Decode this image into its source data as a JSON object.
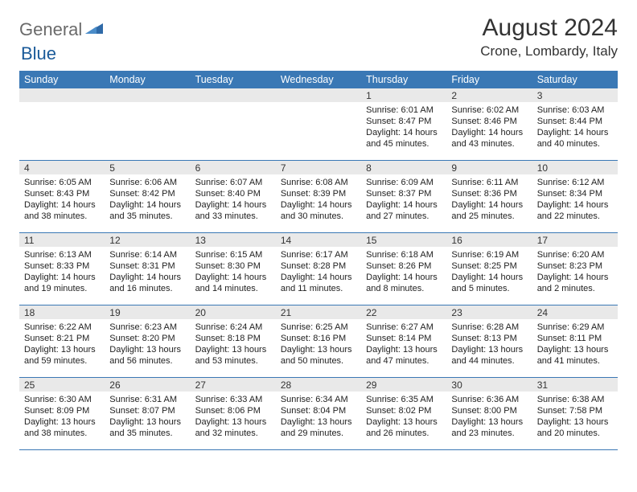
{
  "logo": {
    "general": "General",
    "blue": "Blue"
  },
  "title": "August 2024",
  "location": "Crone, Lombardy, Italy",
  "weekday_bg": "#3a78b5",
  "daynum_bg": "#e9e9e9",
  "weekdays": [
    "Sunday",
    "Monday",
    "Tuesday",
    "Wednesday",
    "Thursday",
    "Friday",
    "Saturday"
  ],
  "weeks": [
    [
      {
        "n": "",
        "sr": "",
        "ss": "",
        "dl": ""
      },
      {
        "n": "",
        "sr": "",
        "ss": "",
        "dl": ""
      },
      {
        "n": "",
        "sr": "",
        "ss": "",
        "dl": ""
      },
      {
        "n": "",
        "sr": "",
        "ss": "",
        "dl": ""
      },
      {
        "n": "1",
        "sr": "Sunrise: 6:01 AM",
        "ss": "Sunset: 8:47 PM",
        "dl": "Daylight: 14 hours and 45 minutes."
      },
      {
        "n": "2",
        "sr": "Sunrise: 6:02 AM",
        "ss": "Sunset: 8:46 PM",
        "dl": "Daylight: 14 hours and 43 minutes."
      },
      {
        "n": "3",
        "sr": "Sunrise: 6:03 AM",
        "ss": "Sunset: 8:44 PM",
        "dl": "Daylight: 14 hours and 40 minutes."
      }
    ],
    [
      {
        "n": "4",
        "sr": "Sunrise: 6:05 AM",
        "ss": "Sunset: 8:43 PM",
        "dl": "Daylight: 14 hours and 38 minutes."
      },
      {
        "n": "5",
        "sr": "Sunrise: 6:06 AM",
        "ss": "Sunset: 8:42 PM",
        "dl": "Daylight: 14 hours and 35 minutes."
      },
      {
        "n": "6",
        "sr": "Sunrise: 6:07 AM",
        "ss": "Sunset: 8:40 PM",
        "dl": "Daylight: 14 hours and 33 minutes."
      },
      {
        "n": "7",
        "sr": "Sunrise: 6:08 AM",
        "ss": "Sunset: 8:39 PM",
        "dl": "Daylight: 14 hours and 30 minutes."
      },
      {
        "n": "8",
        "sr": "Sunrise: 6:09 AM",
        "ss": "Sunset: 8:37 PM",
        "dl": "Daylight: 14 hours and 27 minutes."
      },
      {
        "n": "9",
        "sr": "Sunrise: 6:11 AM",
        "ss": "Sunset: 8:36 PM",
        "dl": "Daylight: 14 hours and 25 minutes."
      },
      {
        "n": "10",
        "sr": "Sunrise: 6:12 AM",
        "ss": "Sunset: 8:34 PM",
        "dl": "Daylight: 14 hours and 22 minutes."
      }
    ],
    [
      {
        "n": "11",
        "sr": "Sunrise: 6:13 AM",
        "ss": "Sunset: 8:33 PM",
        "dl": "Daylight: 14 hours and 19 minutes."
      },
      {
        "n": "12",
        "sr": "Sunrise: 6:14 AM",
        "ss": "Sunset: 8:31 PM",
        "dl": "Daylight: 14 hours and 16 minutes."
      },
      {
        "n": "13",
        "sr": "Sunrise: 6:15 AM",
        "ss": "Sunset: 8:30 PM",
        "dl": "Daylight: 14 hours and 14 minutes."
      },
      {
        "n": "14",
        "sr": "Sunrise: 6:17 AM",
        "ss": "Sunset: 8:28 PM",
        "dl": "Daylight: 14 hours and 11 minutes."
      },
      {
        "n": "15",
        "sr": "Sunrise: 6:18 AM",
        "ss": "Sunset: 8:26 PM",
        "dl": "Daylight: 14 hours and 8 minutes."
      },
      {
        "n": "16",
        "sr": "Sunrise: 6:19 AM",
        "ss": "Sunset: 8:25 PM",
        "dl": "Daylight: 14 hours and 5 minutes."
      },
      {
        "n": "17",
        "sr": "Sunrise: 6:20 AM",
        "ss": "Sunset: 8:23 PM",
        "dl": "Daylight: 14 hours and 2 minutes."
      }
    ],
    [
      {
        "n": "18",
        "sr": "Sunrise: 6:22 AM",
        "ss": "Sunset: 8:21 PM",
        "dl": "Daylight: 13 hours and 59 minutes."
      },
      {
        "n": "19",
        "sr": "Sunrise: 6:23 AM",
        "ss": "Sunset: 8:20 PM",
        "dl": "Daylight: 13 hours and 56 minutes."
      },
      {
        "n": "20",
        "sr": "Sunrise: 6:24 AM",
        "ss": "Sunset: 8:18 PM",
        "dl": "Daylight: 13 hours and 53 minutes."
      },
      {
        "n": "21",
        "sr": "Sunrise: 6:25 AM",
        "ss": "Sunset: 8:16 PM",
        "dl": "Daylight: 13 hours and 50 minutes."
      },
      {
        "n": "22",
        "sr": "Sunrise: 6:27 AM",
        "ss": "Sunset: 8:14 PM",
        "dl": "Daylight: 13 hours and 47 minutes."
      },
      {
        "n": "23",
        "sr": "Sunrise: 6:28 AM",
        "ss": "Sunset: 8:13 PM",
        "dl": "Daylight: 13 hours and 44 minutes."
      },
      {
        "n": "24",
        "sr": "Sunrise: 6:29 AM",
        "ss": "Sunset: 8:11 PM",
        "dl": "Daylight: 13 hours and 41 minutes."
      }
    ],
    [
      {
        "n": "25",
        "sr": "Sunrise: 6:30 AM",
        "ss": "Sunset: 8:09 PM",
        "dl": "Daylight: 13 hours and 38 minutes."
      },
      {
        "n": "26",
        "sr": "Sunrise: 6:31 AM",
        "ss": "Sunset: 8:07 PM",
        "dl": "Daylight: 13 hours and 35 minutes."
      },
      {
        "n": "27",
        "sr": "Sunrise: 6:33 AM",
        "ss": "Sunset: 8:06 PM",
        "dl": "Daylight: 13 hours and 32 minutes."
      },
      {
        "n": "28",
        "sr": "Sunrise: 6:34 AM",
        "ss": "Sunset: 8:04 PM",
        "dl": "Daylight: 13 hours and 29 minutes."
      },
      {
        "n": "29",
        "sr": "Sunrise: 6:35 AM",
        "ss": "Sunset: 8:02 PM",
        "dl": "Daylight: 13 hours and 26 minutes."
      },
      {
        "n": "30",
        "sr": "Sunrise: 6:36 AM",
        "ss": "Sunset: 8:00 PM",
        "dl": "Daylight: 13 hours and 23 minutes."
      },
      {
        "n": "31",
        "sr": "Sunrise: 6:38 AM",
        "ss": "Sunset: 7:58 PM",
        "dl": "Daylight: 13 hours and 20 minutes."
      }
    ]
  ]
}
